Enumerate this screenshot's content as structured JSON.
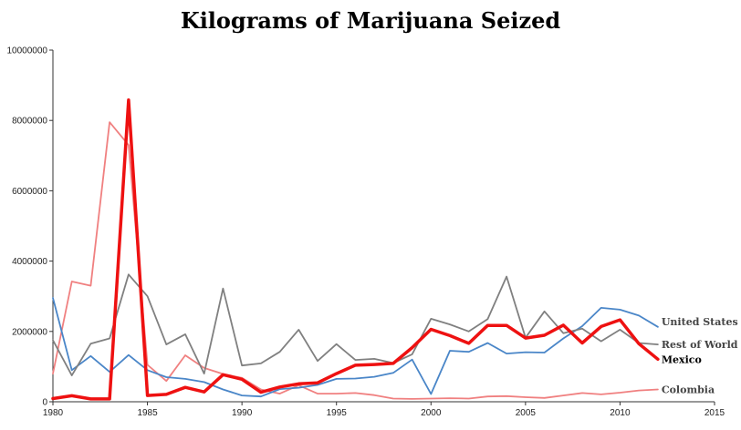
{
  "chart_data": {
    "type": "line",
    "title": "Kilograms of Marijuana Seized",
    "xlabel": "",
    "ylabel": "",
    "xlim": [
      1980,
      2015
    ],
    "ylim": [
      0,
      10000000
    ],
    "x_ticks": [
      "1980",
      "1985",
      "1990",
      "1995",
      "2000",
      "2005",
      "2010",
      "2015"
    ],
    "y_ticks": [
      "0",
      "2000000",
      "4000000",
      "6000000",
      "8000000",
      "10000000"
    ],
    "grid": false,
    "legend": "end-of-line labels",
    "x": [
      1980,
      1981,
      1982,
      1983,
      1984,
      1985,
      1986,
      1987,
      1988,
      1989,
      1990,
      1991,
      1992,
      1993,
      1994,
      1995,
      1996,
      1997,
      1998,
      1999,
      2000,
      2001,
      2002,
      2003,
      2004,
      2005,
      2006,
      2007,
      2008,
      2009,
      2010,
      2011,
      2012
    ],
    "series": [
      {
        "name": "United States",
        "color": "#4a86c8",
        "values": [
          2950000,
          900000,
          1300000,
          850000,
          1330000,
          900000,
          700000,
          650000,
          560000,
          350000,
          180000,
          150000,
          360000,
          400000,
          480000,
          650000,
          660000,
          710000,
          820000,
          1200000,
          220000,
          1450000,
          1420000,
          1670000,
          1370000,
          1410000,
          1400000,
          1800000,
          2150000,
          2670000,
          2620000,
          2450000,
          2130000
        ]
      },
      {
        "name": "Rest of World",
        "color": "#808080",
        "values": [
          1750000,
          750000,
          1650000,
          1800000,
          3620000,
          3000000,
          1630000,
          1920000,
          800000,
          3220000,
          1030000,
          1090000,
          1420000,
          2050000,
          1160000,
          1640000,
          1190000,
          1220000,
          1100000,
          1350000,
          2360000,
          2200000,
          2000000,
          2350000,
          3560000,
          1820000,
          2570000,
          1950000,
          2080000,
          1720000,
          2050000,
          1670000,
          1630000
        ]
      },
      {
        "name": "Mexico",
        "color": "#ee1111",
        "values": [
          90000,
          170000,
          80000,
          80000,
          8580000,
          180000,
          210000,
          410000,
          280000,
          770000,
          640000,
          270000,
          420000,
          510000,
          540000,
          800000,
          1040000,
          1060000,
          1090000,
          1540000,
          2060000,
          1880000,
          1660000,
          2170000,
          2170000,
          1810000,
          1890000,
          2180000,
          1670000,
          2140000,
          2330000,
          1650000,
          1210000
        ]
      },
      {
        "name": "Colombia",
        "color": "#f08080",
        "values": [
          800000,
          3420000,
          3300000,
          7950000,
          7300000,
          1050000,
          590000,
          1320000,
          960000,
          790000,
          680000,
          350000,
          230000,
          470000,
          230000,
          230000,
          250000,
          190000,
          90000,
          80000,
          90000,
          100000,
          90000,
          150000,
          160000,
          130000,
          110000,
          180000,
          250000,
          210000,
          260000,
          320000,
          350000
        ]
      }
    ]
  }
}
